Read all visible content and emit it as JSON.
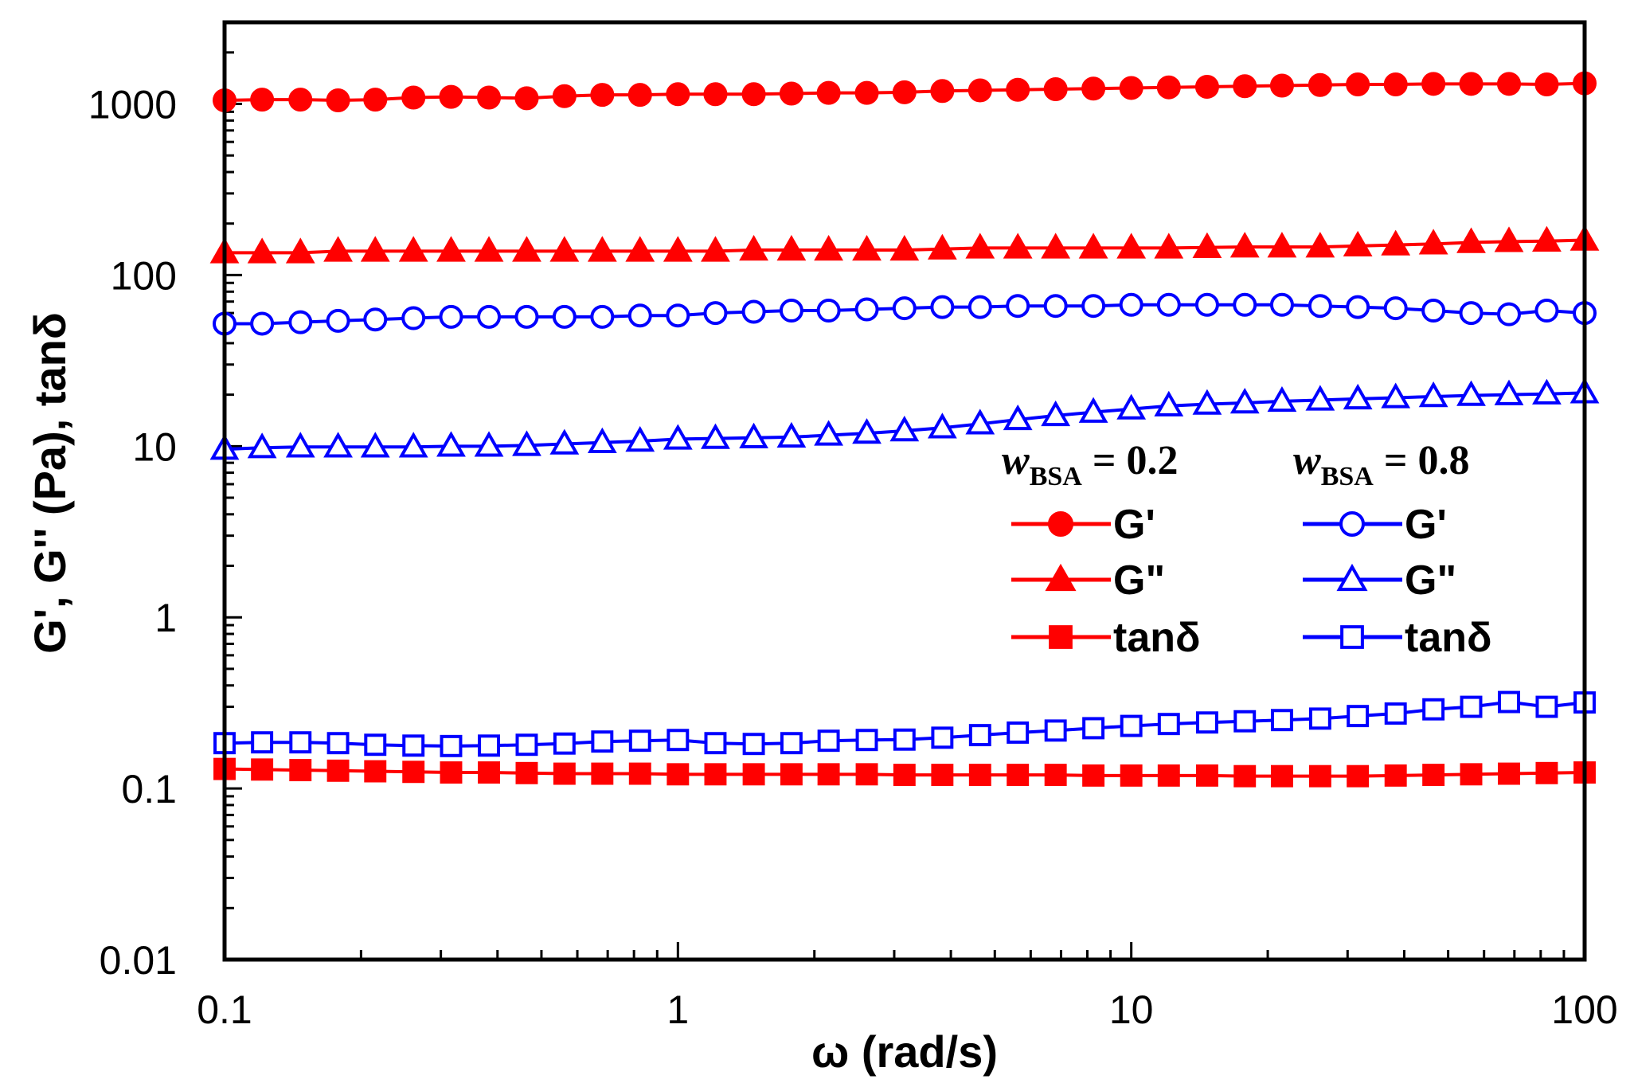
{
  "chart_data": {
    "type": "scatter",
    "title": "",
    "xlabel": "ω (rad/s)",
    "ylabel": "G', G'' (Pa), tanδ",
    "xscale": "log",
    "yscale": "log",
    "xlim": [
      0.1,
      100
    ],
    "ylim": [
      0.01,
      3000
    ],
    "x_ticks": [
      {
        "value": 0.1,
        "label": "0.1"
      },
      {
        "value": 1,
        "label": "1"
      },
      {
        "value": 10,
        "label": "10"
      },
      {
        "value": 100,
        "label": "100"
      }
    ],
    "y_ticks": [
      {
        "value": 0.01,
        "label": "0.01"
      },
      {
        "value": 0.1,
        "label": "0.1"
      },
      {
        "value": 1,
        "label": "1"
      },
      {
        "value": 10,
        "label": "10"
      },
      {
        "value": 100,
        "label": "100"
      },
      {
        "value": 1000,
        "label": "1000"
      }
    ],
    "legend": {
      "placement": "center-right",
      "groups": [
        {
          "heading_var": "w",
          "heading_sub": "BSA",
          "heading_rest": " = 0.2"
        },
        {
          "heading_var": "w",
          "heading_sub": "BSA",
          "heading_rest": " = 0.8"
        }
      ]
    },
    "x": [
      0.1,
      0.121,
      0.147,
      0.178,
      0.215,
      0.261,
      0.316,
      0.383,
      0.464,
      0.562,
      0.681,
      0.825,
      1.0,
      1.21,
      1.47,
      1.78,
      2.15,
      2.61,
      3.16,
      3.83,
      4.64,
      5.62,
      6.81,
      8.25,
      10.0,
      12.1,
      14.7,
      17.8,
      21.5,
      26.1,
      31.6,
      38.3,
      46.4,
      56.2,
      68.1,
      82.5,
      100.0
    ],
    "series": [
      {
        "name": "G'",
        "group": "wBSA = 0.2",
        "label": "G'",
        "color": "#ff0000",
        "marker": "circle",
        "filled": true,
        "values": [
          1050,
          1060,
          1060,
          1050,
          1060,
          1090,
          1100,
          1090,
          1080,
          1110,
          1130,
          1130,
          1140,
          1140,
          1140,
          1150,
          1160,
          1160,
          1170,
          1190,
          1200,
          1210,
          1220,
          1230,
          1240,
          1250,
          1260,
          1270,
          1280,
          1290,
          1300,
          1300,
          1310,
          1310,
          1310,
          1300,
          1320
        ]
      },
      {
        "name": "G''",
        "group": "wBSA = 0.2",
        "label": "G\"",
        "color": "#ff0000",
        "marker": "triangle",
        "filled": true,
        "values": [
          135,
          135,
          135,
          138,
          138,
          138,
          138,
          138,
          138,
          138,
          138,
          138,
          138,
          138,
          140,
          140,
          140,
          140,
          140,
          142,
          144,
          144,
          144,
          144,
          144,
          144,
          145,
          146,
          146,
          146,
          148,
          150,
          152,
          155,
          157,
          158,
          160
        ]
      },
      {
        "name": "tanδ",
        "group": "wBSA = 0.2",
        "label": "tanδ",
        "color": "#ff0000",
        "marker": "square",
        "filled": true,
        "values": [
          0.13,
          0.129,
          0.128,
          0.127,
          0.126,
          0.125,
          0.124,
          0.124,
          0.123,
          0.122,
          0.122,
          0.122,
          0.121,
          0.121,
          0.121,
          0.121,
          0.121,
          0.121,
          0.12,
          0.12,
          0.12,
          0.12,
          0.12,
          0.119,
          0.119,
          0.119,
          0.119,
          0.118,
          0.118,
          0.118,
          0.118,
          0.119,
          0.12,
          0.121,
          0.122,
          0.123,
          0.124
        ]
      },
      {
        "name": "G' (0.8)",
        "group": "wBSA = 0.8",
        "label": "G'",
        "color": "#0000ff",
        "marker": "circle",
        "filled": false,
        "values": [
          52,
          52,
          53,
          54,
          55,
          56,
          57,
          57,
          57,
          57,
          57,
          58,
          58,
          60,
          61,
          62,
          62,
          63,
          64,
          65,
          65,
          66,
          66,
          66,
          67,
          67,
          67,
          67,
          67,
          66,
          65,
          64,
          62,
          60,
          59,
          62,
          60
        ]
      },
      {
        "name": "G'' (0.8)",
        "group": "wBSA = 0.8",
        "label": "G\"",
        "color": "#0000ff",
        "marker": "triangle",
        "filled": false,
        "values": [
          9.6,
          9.8,
          9.9,
          9.9,
          9.9,
          9.9,
          10.0,
          10.0,
          10.1,
          10.3,
          10.5,
          10.7,
          11.0,
          11.1,
          11.2,
          11.3,
          11.6,
          11.9,
          12.3,
          12.8,
          13.5,
          14.3,
          15.1,
          15.8,
          16.5,
          17.2,
          17.6,
          17.9,
          18.3,
          18.6,
          18.9,
          19.2,
          19.5,
          19.8,
          20.0,
          20.2,
          20.5
        ]
      },
      {
        "name": "tanδ (0.8)",
        "group": "wBSA = 0.8",
        "label": "tanδ",
        "color": "#0000ff",
        "marker": "square",
        "filled": false,
        "values": [
          0.184,
          0.186,
          0.186,
          0.184,
          0.18,
          0.178,
          0.177,
          0.178,
          0.18,
          0.183,
          0.188,
          0.19,
          0.192,
          0.184,
          0.182,
          0.184,
          0.19,
          0.192,
          0.193,
          0.198,
          0.205,
          0.212,
          0.218,
          0.225,
          0.232,
          0.238,
          0.243,
          0.247,
          0.251,
          0.256,
          0.265,
          0.274,
          0.29,
          0.3,
          0.32,
          0.3,
          0.318
        ]
      }
    ]
  }
}
